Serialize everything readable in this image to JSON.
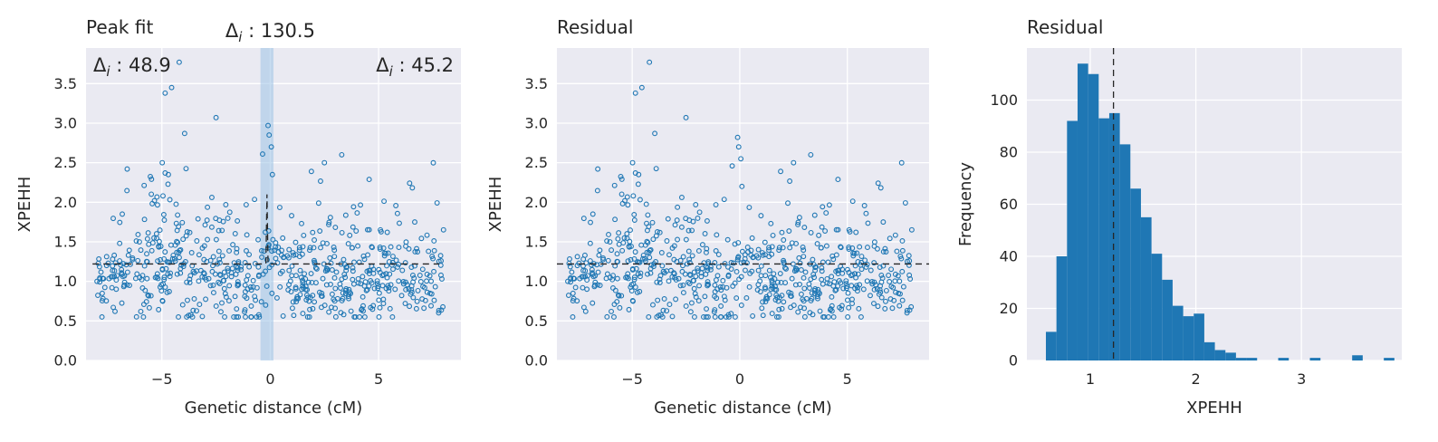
{
  "colors": {
    "axes_bg": "#eaeaf2",
    "grid": "#ffffff",
    "marker": "#1f77b4",
    "bar": "#1f77b4",
    "band": "#9cc3e5",
    "ref_line": "#262626",
    "text": "#262626"
  },
  "chart_data": [
    {
      "type": "scatter",
      "title": "Peak fit",
      "xlabel": "Genetic distance (cM)",
      "ylabel": "XPEHH",
      "xlim": [
        -8.5,
        8.8
      ],
      "ylim": [
        0,
        3.95
      ],
      "xticks": [
        -5,
        0,
        5
      ],
      "xtick_labels": [
        "−5",
        "0",
        "5"
      ],
      "yticks": [
        0,
        0.5,
        1,
        1.5,
        2,
        2.5,
        3,
        3.5
      ],
      "ytick_labels": [
        "0.0",
        "0.5",
        "1.0",
        "1.5",
        "2.0",
        "2.5",
        "3.0",
        "3.5"
      ],
      "grid": true,
      "marker": "open-circle",
      "series_seed": 7,
      "annotations": [
        {
          "text": "Δ",
          "sub": "i",
          "value": " : 48.9",
          "position": "top-left"
        },
        {
          "text": "Δ",
          "sub": "i",
          "value": " : 130.5",
          "position": "above-peak"
        },
        {
          "text": "Δ",
          "sub": "i",
          "value": " : 45.2",
          "position": "top-right"
        }
      ],
      "peak_band": {
        "x_from": -0.45,
        "x_to": 0.15
      },
      "fit_line": {
        "baseline": 1.22,
        "peak_x": -0.15,
        "peak_y": 2.1,
        "left_x": -8.2,
        "right_x": 7.8
      }
    },
    {
      "type": "scatter",
      "title": "Residual",
      "xlabel": "Genetic distance (cM)",
      "ylabel": "XPEHH",
      "xlim": [
        -8.5,
        8.8
      ],
      "ylim": [
        0,
        3.95
      ],
      "xticks": [
        -5,
        0,
        5
      ],
      "xtick_labels": [
        "−5",
        "0",
        "5"
      ],
      "yticks": [
        0,
        0.5,
        1,
        1.5,
        2,
        2.5,
        3,
        3.5
      ],
      "ytick_labels": [
        "0.0",
        "0.5",
        "1.0",
        "1.5",
        "2.0",
        "2.5",
        "3.0",
        "3.5"
      ],
      "grid": true,
      "marker": "open-circle",
      "series_seed": 7,
      "hline": 1.22
    },
    {
      "type": "bar",
      "title": "Residual",
      "xlabel": "XPEHH",
      "ylabel": "Frequency",
      "xlim": [
        0.4,
        3.95
      ],
      "ylim": [
        0,
        120
      ],
      "xticks": [
        1,
        2,
        3
      ],
      "xtick_labels": [
        "1",
        "2",
        "3"
      ],
      "yticks": [
        0,
        20,
        40,
        60,
        80,
        100
      ],
      "ytick_labels": [
        "0",
        "20",
        "40",
        "60",
        "80",
        "100"
      ],
      "grid": true,
      "bin_start": 0.58,
      "bin_width": 0.1,
      "values": [
        11,
        40,
        92,
        114,
        110,
        93,
        95,
        83,
        66,
        55,
        41,
        31,
        21,
        17,
        18,
        7,
        4,
        3,
        1,
        1,
        0,
        0,
        1,
        0,
        0,
        1,
        0,
        0,
        0,
        2,
        0,
        0,
        1
      ],
      "vline": 1.22
    }
  ]
}
